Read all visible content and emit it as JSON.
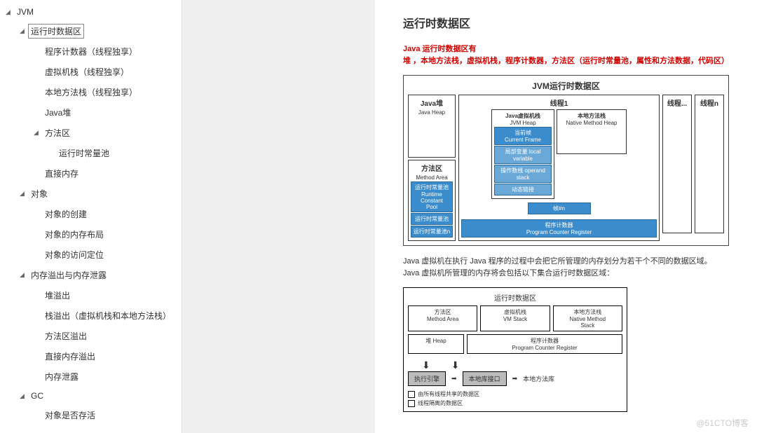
{
  "sidebar": {
    "items": [
      {
        "label": "JVM",
        "level": 0,
        "arrow": "◢",
        "selected": false
      },
      {
        "label": "运行时数据区",
        "level": 1,
        "arrow": "◢",
        "selected": true
      },
      {
        "label": "程序计数器（线程独享）",
        "level": 2,
        "arrow": "",
        "selected": false
      },
      {
        "label": "虚拟机栈（线程独享）",
        "level": 2,
        "arrow": "",
        "selected": false
      },
      {
        "label": "本地方法栈（线程独享）",
        "level": 2,
        "arrow": "",
        "selected": false
      },
      {
        "label": "Java堆",
        "level": 2,
        "arrow": "",
        "selected": false
      },
      {
        "label": "方法区",
        "level": 2,
        "arrow": "◢",
        "selected": false
      },
      {
        "label": "运行时常量池",
        "level": 3,
        "arrow": "",
        "selected": false
      },
      {
        "label": "直接内存",
        "level": 2,
        "arrow": "",
        "selected": false
      },
      {
        "label": "对象",
        "level": 1,
        "arrow": "◢",
        "selected": false
      },
      {
        "label": "对象的创建",
        "level": 2,
        "arrow": "",
        "selected": false
      },
      {
        "label": "对象的内存布局",
        "level": 2,
        "arrow": "",
        "selected": false
      },
      {
        "label": "对象的访问定位",
        "level": 2,
        "arrow": "",
        "selected": false
      },
      {
        "label": "内存溢出与内存泄露",
        "level": 1,
        "arrow": "◢",
        "selected": false
      },
      {
        "label": "堆溢出",
        "level": 2,
        "arrow": "",
        "selected": false
      },
      {
        "label": "栈溢出（虚拟机栈和本地方法栈）",
        "level": 2,
        "arrow": "",
        "selected": false
      },
      {
        "label": "方法区溢出",
        "level": 2,
        "arrow": "",
        "selected": false
      },
      {
        "label": "直接内存溢出",
        "level": 2,
        "arrow": "",
        "selected": false
      },
      {
        "label": "内存泄露",
        "level": 2,
        "arrow": "",
        "selected": false
      },
      {
        "label": "GC",
        "level": 1,
        "arrow": "◢",
        "selected": false
      },
      {
        "label": "对象是否存活",
        "level": 2,
        "arrow": "",
        "selected": false
      }
    ]
  },
  "content": {
    "title": "运行时数据区",
    "red_intro": "Java 运行时数据区有",
    "red_body": "堆 ，本地方法栈，虚拟机栈，程序计数器，方法区（运行时常量池，属性和方法数据，代码区）",
    "diagram1": {
      "title": "JVM运行时数据区",
      "java_heap_title": "Java堆",
      "java_heap_sub": "Java Heap",
      "method_area_title": "方法区",
      "method_area_sub": "Method Area",
      "method_runtime": "运行时常量池\nRuntime Constant\nPool",
      "method_box2": "运行时常量池",
      "method_box3": "运行时常量池n",
      "thread1_title": "线程1",
      "jvm_stack_title": "Java虚拟机栈",
      "jvm_stack_sub": "JVM Heap",
      "native_stack_title": "本地方法栈",
      "native_stack_sub": "Native Method Heap",
      "frame_current": "当前帧\nCurrent Frame",
      "frame_local": "局部变量\nlocal variable",
      "frame_operand": "操作数栈\noperand stack",
      "frame_dyn": "动态链接",
      "frame_n": "帧#n",
      "pc_title": "程序计数器",
      "pc_sub": "Program Counter Register",
      "threadx_title": "线程...",
      "threadn_title": "线程n",
      "border_color": "#333333",
      "blue_bg": "#3a8ccc",
      "blue_light": "#6aa8d8"
    },
    "desc_line1": "Java 虚拟机在执行 Java 程序的过程中会把它所管理的内存划分为若干个不同的数据区域。",
    "desc_line2": "Java 虚拟机所管理的内存将会包括以下集合运行时数据区域：",
    "diagram2": {
      "title": "运行时数据区",
      "method_area": "方法区\nMethod Area",
      "vm_stack": "虚拟机栈\nVM Stack",
      "native_stack": "本地方法栈\nNative Method\nStack",
      "heap": "堆\nHeap",
      "pc": "程序计数器\nProgram Counter Register",
      "exec_engine": "执行引擎",
      "native_intf": "本地库接口",
      "native_lib": "本地方法库",
      "legend1": "由所有线程共享的数据区",
      "legend2": "线程隔离的数据区"
    },
    "watermark": "@51CTO博客"
  }
}
